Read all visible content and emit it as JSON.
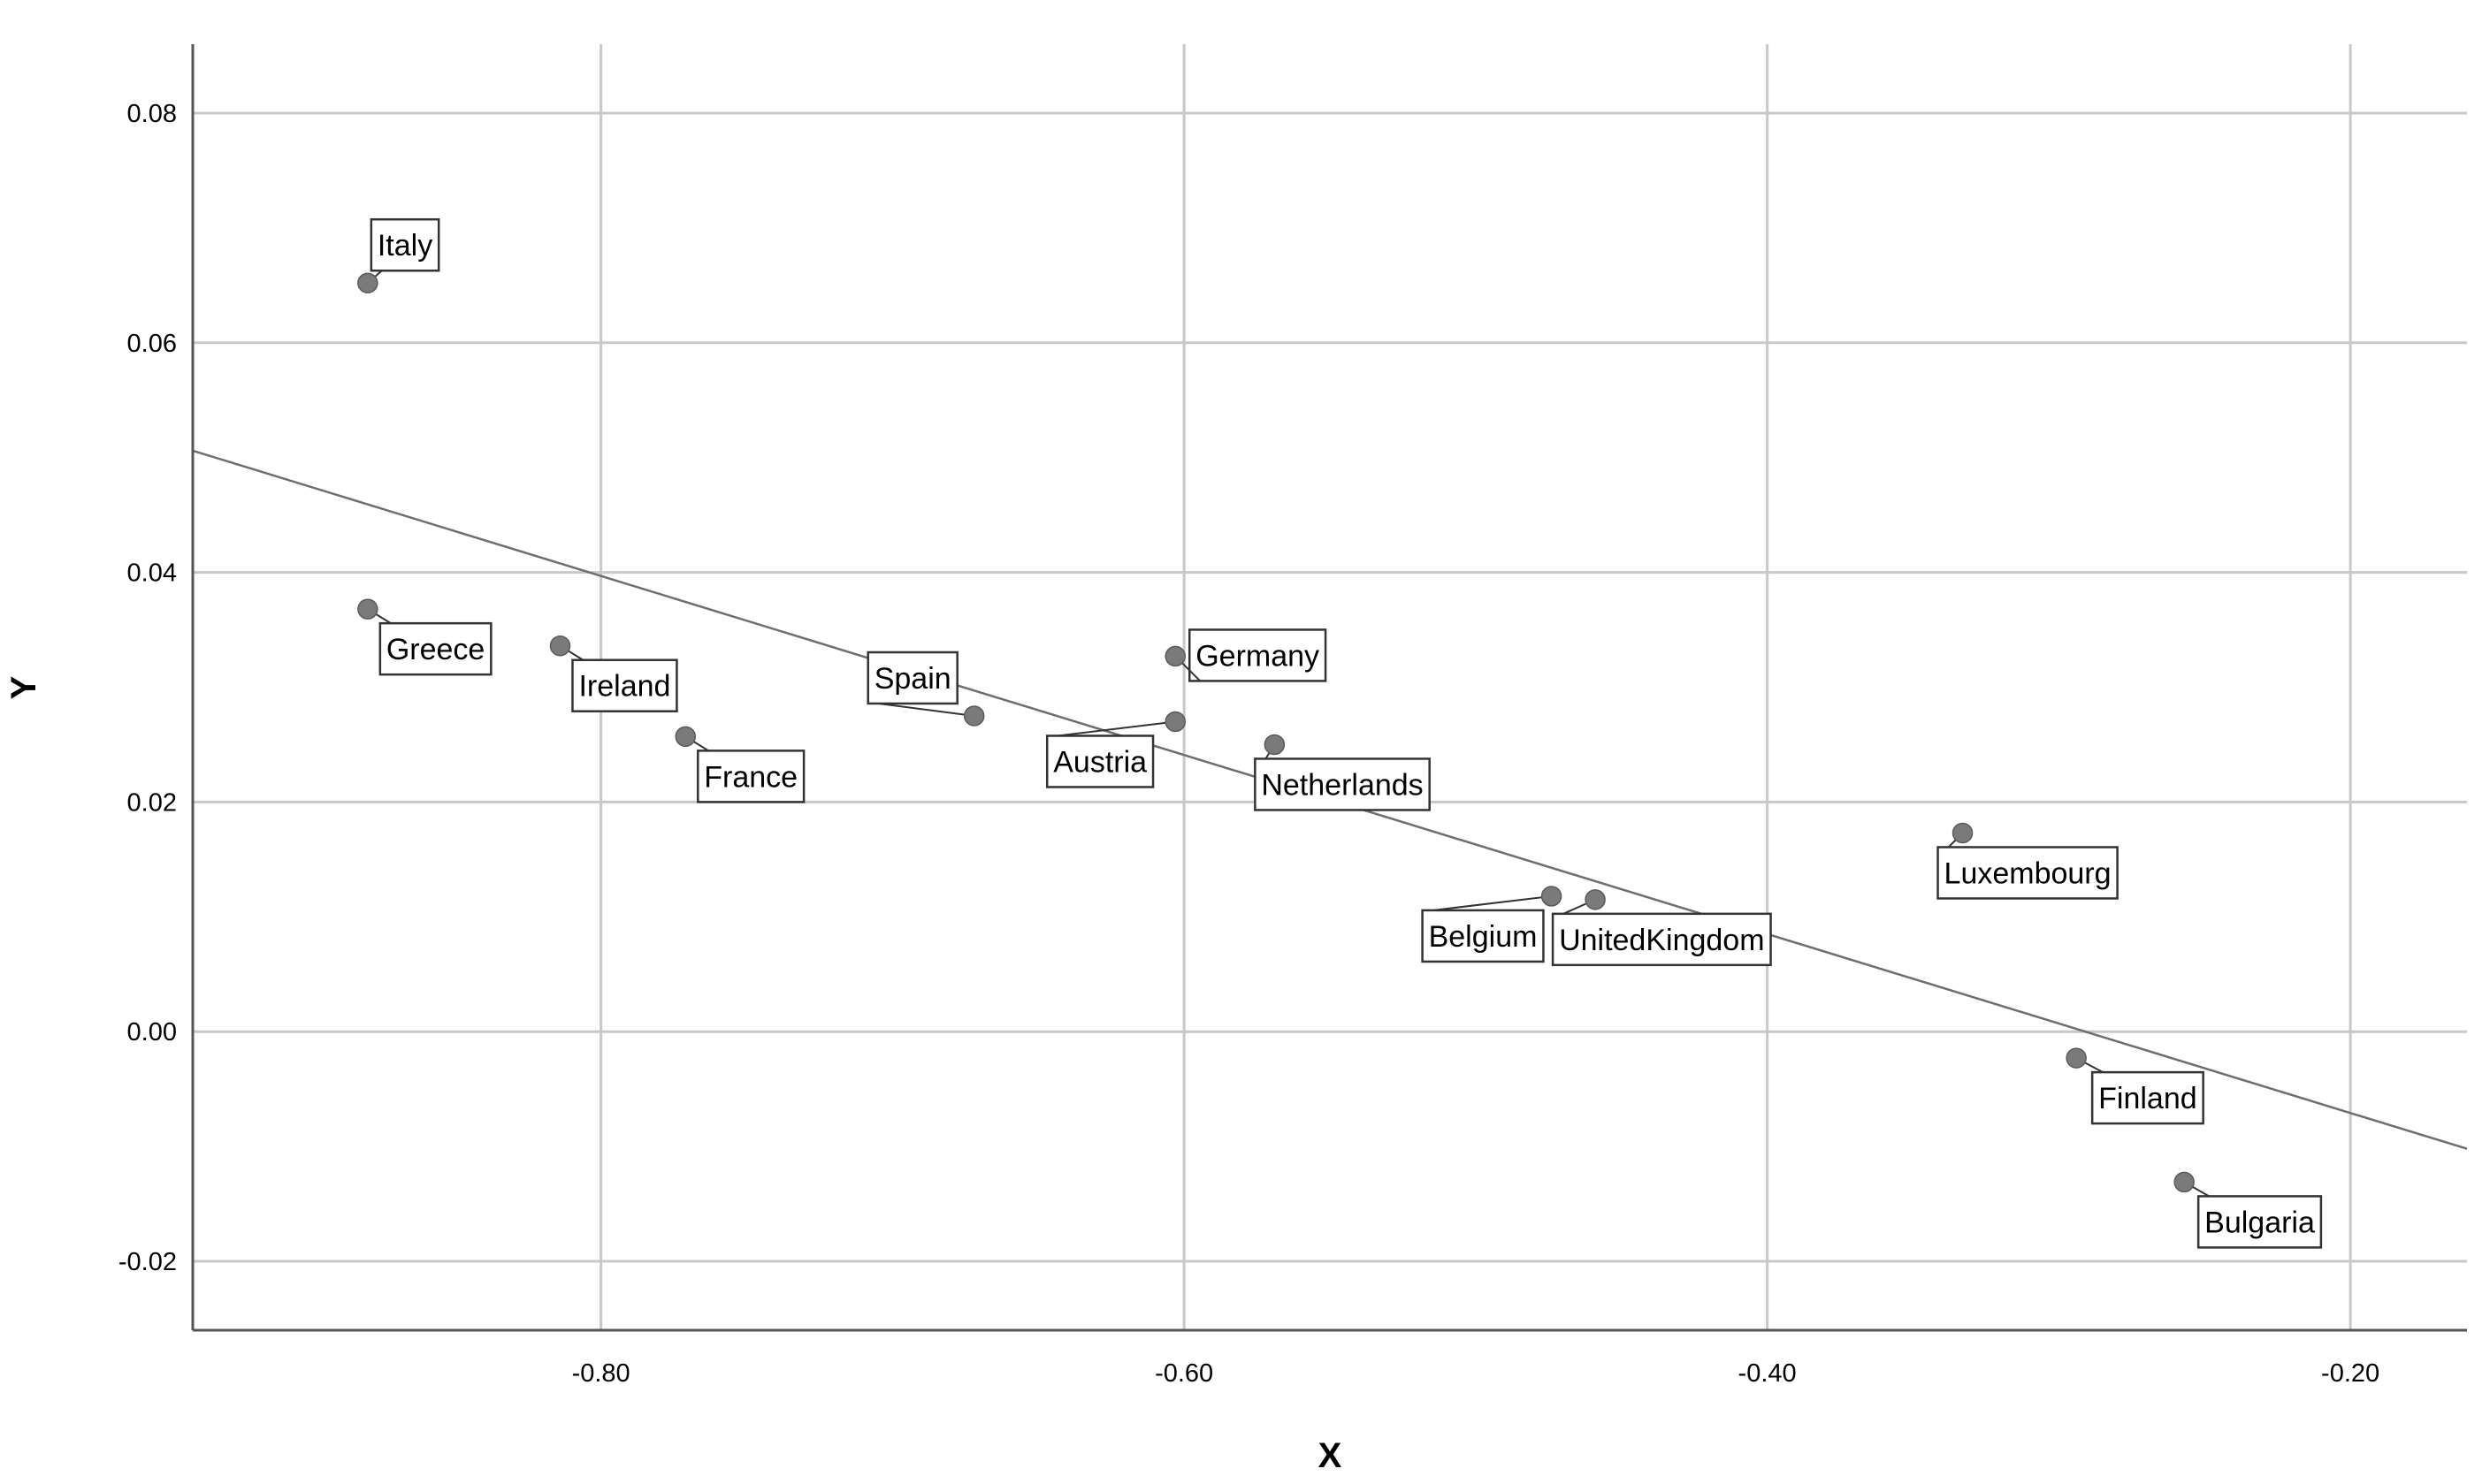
{
  "chart_data": {
    "type": "scatter",
    "xlabel": "X",
    "ylabel": "Y",
    "xlim": [
      -0.94,
      -0.16
    ],
    "ylim": [
      -0.026,
      0.086
    ],
    "x_ticks": [
      -0.8,
      -0.6,
      -0.4,
      -0.2
    ],
    "x_tick_labels": [
      "-0.80",
      "-0.60",
      "-0.40",
      "-0.20"
    ],
    "y_ticks": [
      0.08,
      0.06,
      0.04,
      0.02,
      0.0,
      -0.02
    ],
    "y_tick_labels": [
      "0.08",
      "0.06",
      "0.04",
      "0.02",
      "0.00",
      "-0.02"
    ],
    "grid": true,
    "legend": "none",
    "fit_line": {
      "x": [
        -0.94,
        -0.16
      ],
      "y": [
        0.0506,
        -0.0102
      ]
    },
    "points": [
      {
        "label": "Italy",
        "x": -0.88,
        "y": 0.0652
      },
      {
        "label": "Greece",
        "x": -0.88,
        "y": 0.0368
      },
      {
        "label": "Ireland",
        "x": -0.814,
        "y": 0.0336
      },
      {
        "label": "France",
        "x": -0.771,
        "y": 0.0257
      },
      {
        "label": "Spain",
        "x": -0.672,
        "y": 0.0275
      },
      {
        "label": "Germany",
        "x": -0.603,
        "y": 0.0327
      },
      {
        "label": "Austria",
        "x": -0.603,
        "y": 0.027
      },
      {
        "label": "Netherlands",
        "x": -0.569,
        "y": 0.025
      },
      {
        "label": "Belgium",
        "x": -0.474,
        "y": 0.0118
      },
      {
        "label": "UnitedKingdom",
        "x": -0.459,
        "y": 0.0115
      },
      {
        "label": "Luxembourg",
        "x": -0.333,
        "y": 0.0173
      },
      {
        "label": "Finland",
        "x": -0.294,
        "y": -0.0023
      },
      {
        "label": "Bulgaria",
        "x": -0.257,
        "y": -0.0131
      }
    ]
  }
}
